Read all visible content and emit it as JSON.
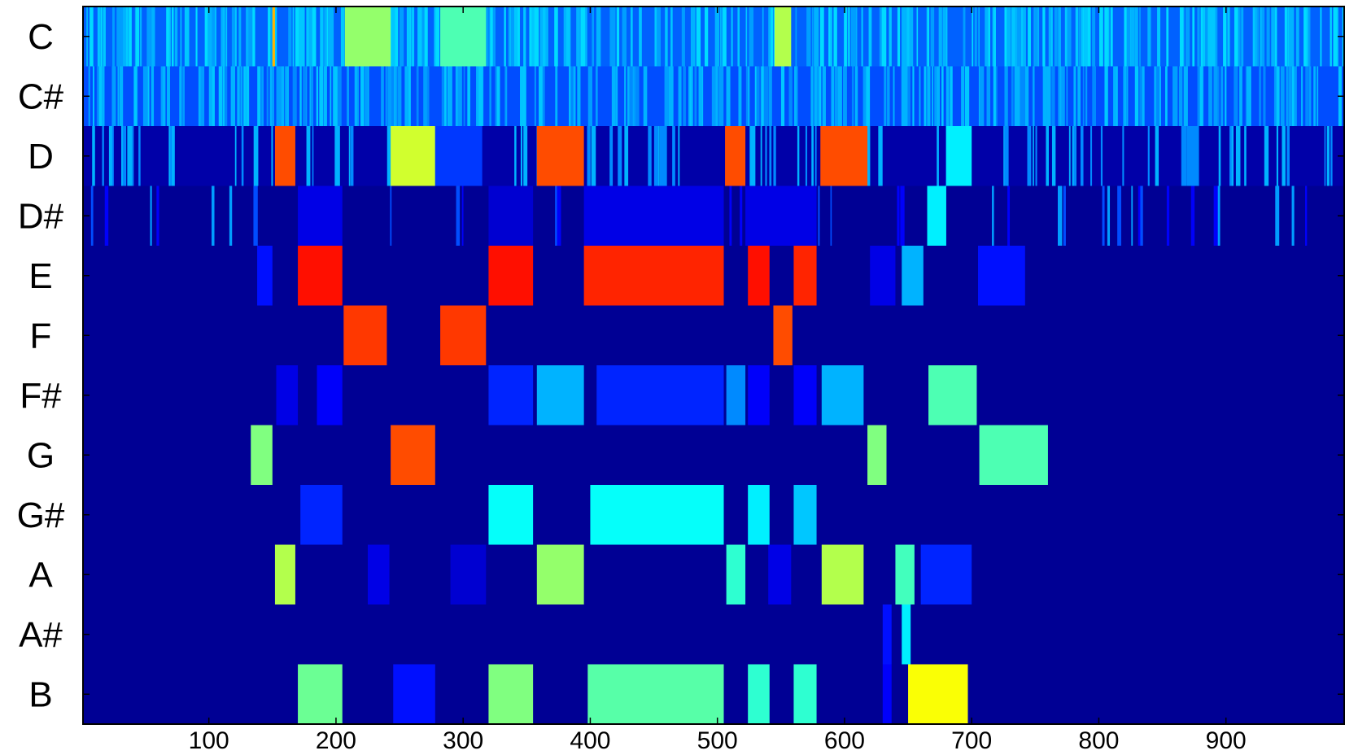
{
  "chart_data": {
    "type": "heatmap",
    "title": "",
    "xlabel": "",
    "ylabel": "",
    "rows": [
      "C",
      "C#",
      "D",
      "D#",
      "E",
      "F",
      "F#",
      "G",
      "G#",
      "A",
      "A#",
      "B"
    ],
    "xlim": [
      1,
      993
    ],
    "xticks": [
      100,
      200,
      300,
      400,
      500,
      600,
      700,
      800,
      900
    ],
    "xtick_labels": [
      "100",
      "200",
      "300",
      "400",
      "500",
      "600",
      "700",
      "800",
      "900"
    ],
    "colormap": "jet",
    "background_value": 0.02,
    "stripe_rows": {
      "C": {
        "stripe_count": 330,
        "seed": 11,
        "levels": [
          0.28,
          0.3,
          0.32,
          0.34
        ],
        "base_value": 0.22
      },
      "C#": {
        "stripe_count": 300,
        "seed": 23,
        "levels": [
          0.26,
          0.28,
          0.3,
          0.32
        ],
        "base_value": 0.2
      },
      "D": {
        "stripe_count": 120,
        "seed": 37,
        "levels": [
          0.26,
          0.3
        ],
        "base_value": 0.04
      },
      "D#": {
        "stripe_count": 50,
        "seed": 53,
        "levels": [
          0.12,
          0.2,
          0.28
        ],
        "base_value": 0.02
      }
    },
    "blocks": [
      {
        "row": "C",
        "start": 150,
        "end": 152,
        "value": 0.7
      },
      {
        "row": "C",
        "start": 207,
        "end": 243,
        "value": 0.52
      },
      {
        "row": "C",
        "start": 282,
        "end": 318,
        "value": 0.45
      },
      {
        "row": "C",
        "start": 545,
        "end": 558,
        "value": 0.55
      },
      {
        "row": "D",
        "start": 152,
        "end": 168,
        "value": 0.8
      },
      {
        "row": "D",
        "start": 243,
        "end": 278,
        "value": 0.58
      },
      {
        "row": "D",
        "start": 278,
        "end": 315,
        "value": 0.18
      },
      {
        "row": "D",
        "start": 358,
        "end": 395,
        "value": 0.8
      },
      {
        "row": "D",
        "start": 506,
        "end": 522,
        "value": 0.8
      },
      {
        "row": "D",
        "start": 581,
        "end": 618,
        "value": 0.8
      },
      {
        "row": "D",
        "start": 680,
        "end": 700,
        "value": 0.36
      },
      {
        "row": "D#",
        "start": 170,
        "end": 205,
        "value": 0.1
      },
      {
        "row": "D#",
        "start": 320,
        "end": 355,
        "value": 0.08
      },
      {
        "row": "D#",
        "start": 395,
        "end": 505,
        "value": 0.1
      },
      {
        "row": "D#",
        "start": 522,
        "end": 578,
        "value": 0.1
      },
      {
        "row": "D#",
        "start": 665,
        "end": 680,
        "value": 0.36
      },
      {
        "row": "E",
        "start": 138,
        "end": 150,
        "value": 0.14
      },
      {
        "row": "E",
        "start": 170,
        "end": 205,
        "value": 0.86
      },
      {
        "row": "E",
        "start": 320,
        "end": 355,
        "value": 0.86
      },
      {
        "row": "E",
        "start": 395,
        "end": 505,
        "value": 0.84
      },
      {
        "row": "E",
        "start": 524,
        "end": 541,
        "value": 0.86
      },
      {
        "row": "E",
        "start": 560,
        "end": 578,
        "value": 0.84
      },
      {
        "row": "E",
        "start": 620,
        "end": 640,
        "value": 0.1
      },
      {
        "row": "E",
        "start": 645,
        "end": 662,
        "value": 0.3
      },
      {
        "row": "E",
        "start": 705,
        "end": 742,
        "value": 0.14
      },
      {
        "row": "F",
        "start": 206,
        "end": 240,
        "value": 0.82
      },
      {
        "row": "F",
        "start": 282,
        "end": 318,
        "value": 0.82
      },
      {
        "row": "F",
        "start": 544,
        "end": 559,
        "value": 0.8
      },
      {
        "row": "F#",
        "start": 153,
        "end": 170,
        "value": 0.1
      },
      {
        "row": "F#",
        "start": 185,
        "end": 205,
        "value": 0.12
      },
      {
        "row": "F#",
        "start": 320,
        "end": 355,
        "value": 0.16
      },
      {
        "row": "F#",
        "start": 358,
        "end": 395,
        "value": 0.3
      },
      {
        "row": "F#",
        "start": 405,
        "end": 505,
        "value": 0.16
      },
      {
        "row": "F#",
        "start": 507,
        "end": 522,
        "value": 0.26
      },
      {
        "row": "F#",
        "start": 524,
        "end": 541,
        "value": 0.12
      },
      {
        "row": "F#",
        "start": 560,
        "end": 578,
        "value": 0.12
      },
      {
        "row": "F#",
        "start": 582,
        "end": 615,
        "value": 0.3
      },
      {
        "row": "F#",
        "start": 666,
        "end": 704,
        "value": 0.45
      },
      {
        "row": "G",
        "start": 133,
        "end": 150,
        "value": 0.5
      },
      {
        "row": "G",
        "start": 243,
        "end": 278,
        "value": 0.8
      },
      {
        "row": "G",
        "start": 618,
        "end": 633,
        "value": 0.5
      },
      {
        "row": "G",
        "start": 706,
        "end": 760,
        "value": 0.45
      },
      {
        "row": "G#",
        "start": 172,
        "end": 205,
        "value": 0.16
      },
      {
        "row": "G#",
        "start": 320,
        "end": 355,
        "value": 0.38
      },
      {
        "row": "G#",
        "start": 400,
        "end": 505,
        "value": 0.38
      },
      {
        "row": "G#",
        "start": 524,
        "end": 541,
        "value": 0.36
      },
      {
        "row": "G#",
        "start": 560,
        "end": 578,
        "value": 0.32
      },
      {
        "row": "A",
        "start": 152,
        "end": 168,
        "value": 0.55
      },
      {
        "row": "A",
        "start": 225,
        "end": 242,
        "value": 0.1
      },
      {
        "row": "A",
        "start": 290,
        "end": 318,
        "value": 0.08
      },
      {
        "row": "A",
        "start": 358,
        "end": 395,
        "value": 0.52
      },
      {
        "row": "A",
        "start": 507,
        "end": 522,
        "value": 0.42
      },
      {
        "row": "A",
        "start": 540,
        "end": 558,
        "value": 0.1
      },
      {
        "row": "A",
        "start": 582,
        "end": 615,
        "value": 0.55
      },
      {
        "row": "A",
        "start": 640,
        "end": 655,
        "value": 0.44
      },
      {
        "row": "A",
        "start": 660,
        "end": 700,
        "value": 0.16
      },
      {
        "row": "A#",
        "start": 630,
        "end": 637,
        "value": 0.14
      },
      {
        "row": "A#",
        "start": 645,
        "end": 652,
        "value": 0.36
      },
      {
        "row": "B",
        "start": 170,
        "end": 205,
        "value": 0.48
      },
      {
        "row": "B",
        "start": 245,
        "end": 278,
        "value": 0.14
      },
      {
        "row": "B",
        "start": 320,
        "end": 355,
        "value": 0.5
      },
      {
        "row": "B",
        "start": 398,
        "end": 505,
        "value": 0.46
      },
      {
        "row": "B",
        "start": 524,
        "end": 541,
        "value": 0.42
      },
      {
        "row": "B",
        "start": 560,
        "end": 578,
        "value": 0.42
      },
      {
        "row": "B",
        "start": 630,
        "end": 637,
        "value": 0.12
      },
      {
        "row": "B",
        "start": 650,
        "end": 697,
        "value": 0.62
      }
    ]
  }
}
